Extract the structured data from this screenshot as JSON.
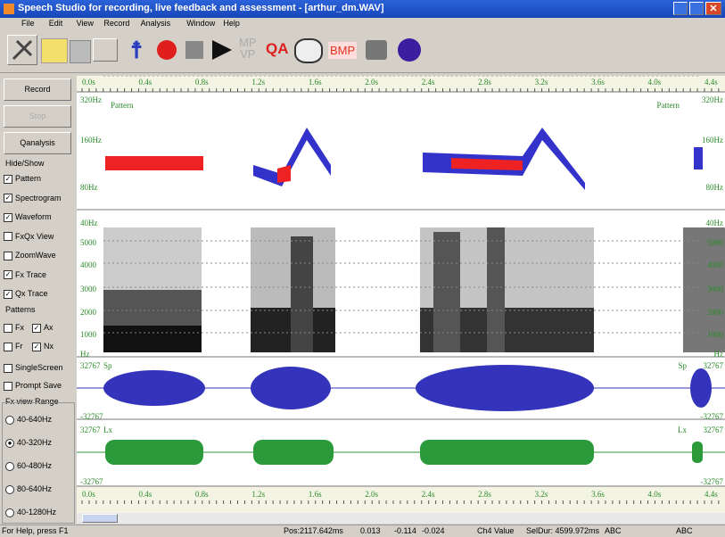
{
  "window": {
    "title": "Speech Studio for recording, live feedback and assessment - [arthur_dm.WAV]"
  },
  "menu": [
    "File",
    "Edit",
    "View",
    "Record",
    "Analysis",
    "Window",
    "Help"
  ],
  "toolbar": {
    "mpvp": [
      "MP",
      "VP"
    ],
    "qa": "QA",
    "bmp": "BMP"
  },
  "left_panel": {
    "buttons": [
      {
        "label": "Record",
        "enabled": true
      },
      {
        "label": "Stop",
        "enabled": false
      },
      {
        "label": "Qanalysis",
        "enabled": true
      }
    ],
    "hide_show": {
      "title": "Hide/Show",
      "items": [
        {
          "label": "Pattern",
          "checked": true
        },
        {
          "label": "Spectrogram",
          "checked": true
        },
        {
          "label": "Waveform",
          "checked": true
        },
        {
          "label": "FxQx View",
          "checked": false
        },
        {
          "label": "ZoomWave",
          "checked": false
        },
        {
          "label": "Fx Trace",
          "checked": true
        },
        {
          "label": "Qx Trace",
          "checked": true
        }
      ]
    },
    "patterns": {
      "title": "Patterns",
      "items": [
        {
          "label": "Fx",
          "checked": false
        },
        {
          "label": "Ax",
          "checked": true
        },
        {
          "label": "Fr",
          "checked": false
        },
        {
          "label": "Nx",
          "checked": true
        }
      ]
    },
    "options": [
      {
        "label": "SingleScreen",
        "checked": false
      },
      {
        "label": "Prompt Save",
        "checked": false
      }
    ],
    "fx_range": {
      "title": "Fx view Range",
      "items": [
        "40-640Hz",
        "40-320Hz",
        "60-480Hz",
        "80-640Hz",
        "40-1280Hz"
      ],
      "selected": 1
    }
  },
  "time_axis": [
    "0.0s",
    "0.4s",
    "0.8s",
    "1.2s",
    "1.6s",
    "2.0s",
    "2.4s",
    "2.8s",
    "3.2s",
    "3.6s",
    "4.0s",
    "4.4s"
  ],
  "panels": {
    "pattern": {
      "name": "Pattern",
      "labels": [
        "320Hz",
        "160Hz",
        "80Hz"
      ]
    },
    "spectrogram": {
      "labels": [
        "40Hz",
        "5000",
        "4000",
        "3000",
        "2000",
        "1000",
        "Hz"
      ]
    },
    "waveform": {
      "name": "Sp",
      "labels": [
        "32767",
        "-32767"
      ]
    },
    "lx": {
      "name": "Lx",
      "labels": [
        "32767",
        "-32767"
      ]
    }
  },
  "status": [
    "For Help, press F1",
    "Pos:2117.642ms",
    "0.013",
    "-0.114",
    "-0.024",
    "Ch4 Value",
    "SelDur: 4599.972ms",
    "ABC",
    "ABC"
  ]
}
